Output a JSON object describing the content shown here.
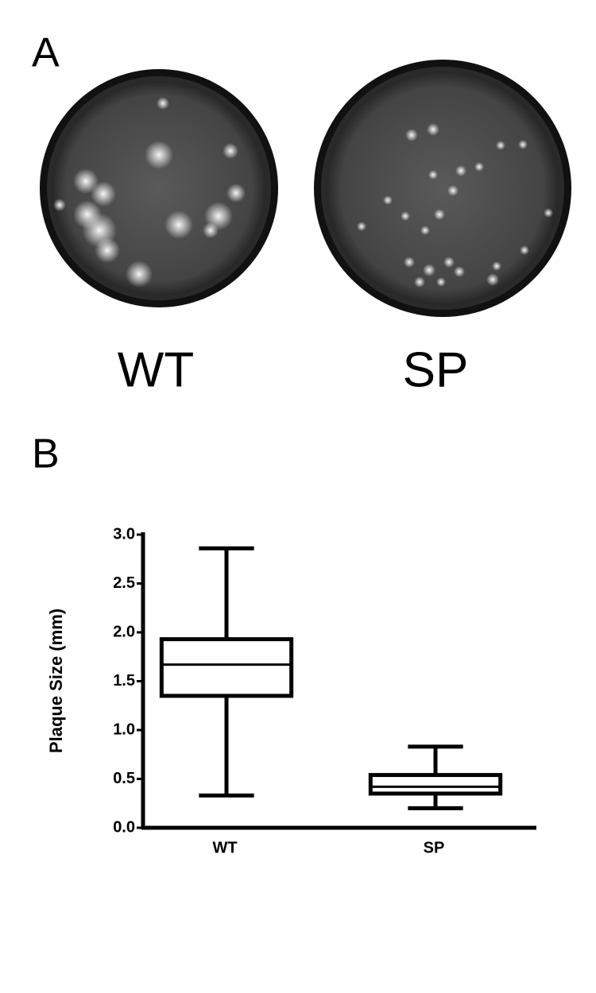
{
  "panel_a": {
    "label": "A",
    "plates": [
      "WT",
      "SP"
    ]
  },
  "chart_data": {
    "type": "box",
    "panel_label": "B",
    "y_label": "Plaque Size (mm)",
    "categories": [
      "WT",
      "SP"
    ],
    "min": [
      0.33,
      0.2
    ],
    "q1": [
      1.35,
      0.35
    ],
    "median": [
      1.67,
      0.42
    ],
    "q3": [
      1.93,
      0.54
    ],
    "max": [
      2.86,
      0.83
    ],
    "color": "#000000",
    "ylim": [
      0,
      3.0
    ],
    "yticks": [
      {
        "value": 0,
        "label": "0.0"
      },
      0.5,
      {
        "value": 1,
        "label": "1.0"
      },
      1.5,
      {
        "value": 2,
        "label": "2.0"
      },
      2.5,
      {
        "value": 3,
        "label": "3.0"
      }
    ]
  }
}
